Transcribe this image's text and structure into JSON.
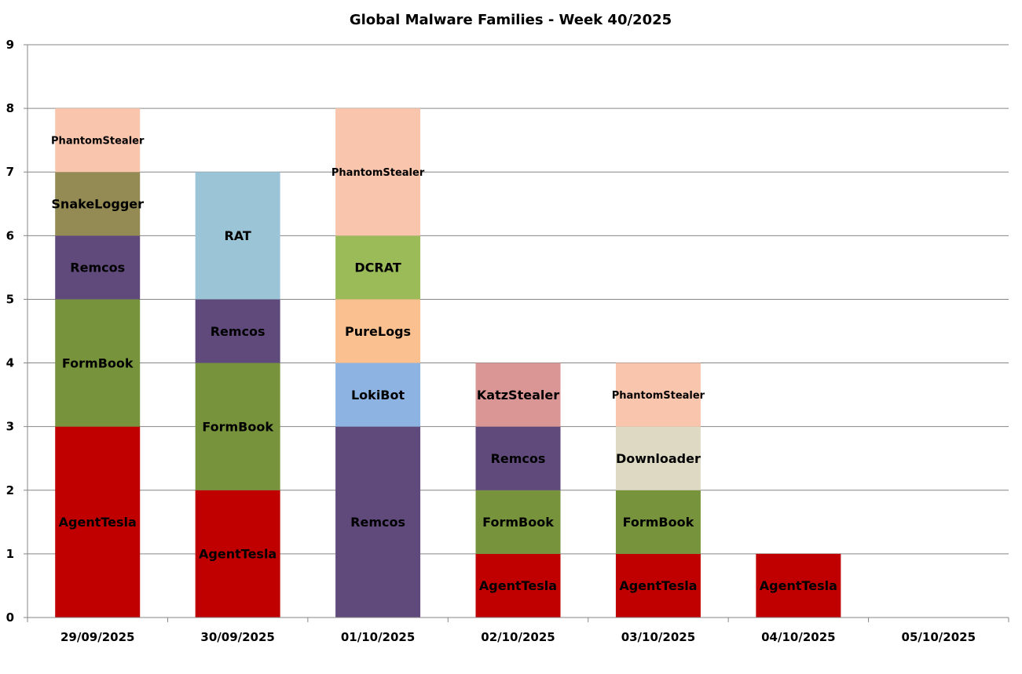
{
  "chart_data": {
    "type": "bar",
    "stacked": true,
    "title": "Global Malware Families - Week 40/2025",
    "xlabel": "",
    "ylabel": "",
    "ylim": [
      0,
      9
    ],
    "yticks": [
      0,
      1,
      2,
      3,
      4,
      5,
      6,
      7,
      8,
      9
    ],
    "grid": true,
    "legend": "none",
    "categories": [
      "29/09/2025",
      "30/09/2025",
      "01/10/2025",
      "02/10/2025",
      "03/10/2025",
      "04/10/2025",
      "05/10/2025"
    ],
    "colors": {
      "AgentTesla": "#c00000",
      "FormBook": "#77933c",
      "Remcos": "#604a7b",
      "SnakeLogger": "#948a54",
      "PhantomStealer": "#fac5ad",
      "RAT": "#9bc5d7",
      "LokiBot": "#8db3e2",
      "PureLogs": "#fac090",
      "DCRAT": "#9bbb59",
      "KatzStealer": "#d99694",
      "Downloader": "#ddd9c3"
    },
    "stacks": [
      [
        {
          "family": "AgentTesla",
          "value": 3
        },
        {
          "family": "FormBook",
          "value": 2
        },
        {
          "family": "Remcos",
          "value": 1
        },
        {
          "family": "SnakeLogger",
          "value": 1
        },
        {
          "family": "PhantomStealer",
          "value": 1
        }
      ],
      [
        {
          "family": "AgentTesla",
          "value": 2
        },
        {
          "family": "FormBook",
          "value": 2
        },
        {
          "family": "Remcos",
          "value": 1
        },
        {
          "family": "RAT",
          "value": 2
        }
      ],
      [
        {
          "family": "Remcos",
          "value": 3
        },
        {
          "family": "LokiBot",
          "value": 1
        },
        {
          "family": "PureLogs",
          "value": 1
        },
        {
          "family": "DCRAT",
          "value": 1
        },
        {
          "family": "PhantomStealer",
          "value": 2
        }
      ],
      [
        {
          "family": "AgentTesla",
          "value": 1
        },
        {
          "family": "FormBook",
          "value": 1
        },
        {
          "family": "Remcos",
          "value": 1
        },
        {
          "family": "KatzStealer",
          "value": 1
        }
      ],
      [
        {
          "family": "AgentTesla",
          "value": 1
        },
        {
          "family": "FormBook",
          "value": 1
        },
        {
          "family": "Downloader",
          "value": 1
        },
        {
          "family": "PhantomStealer",
          "value": 1
        }
      ],
      [
        {
          "family": "AgentTesla",
          "value": 1
        }
      ],
      []
    ]
  }
}
